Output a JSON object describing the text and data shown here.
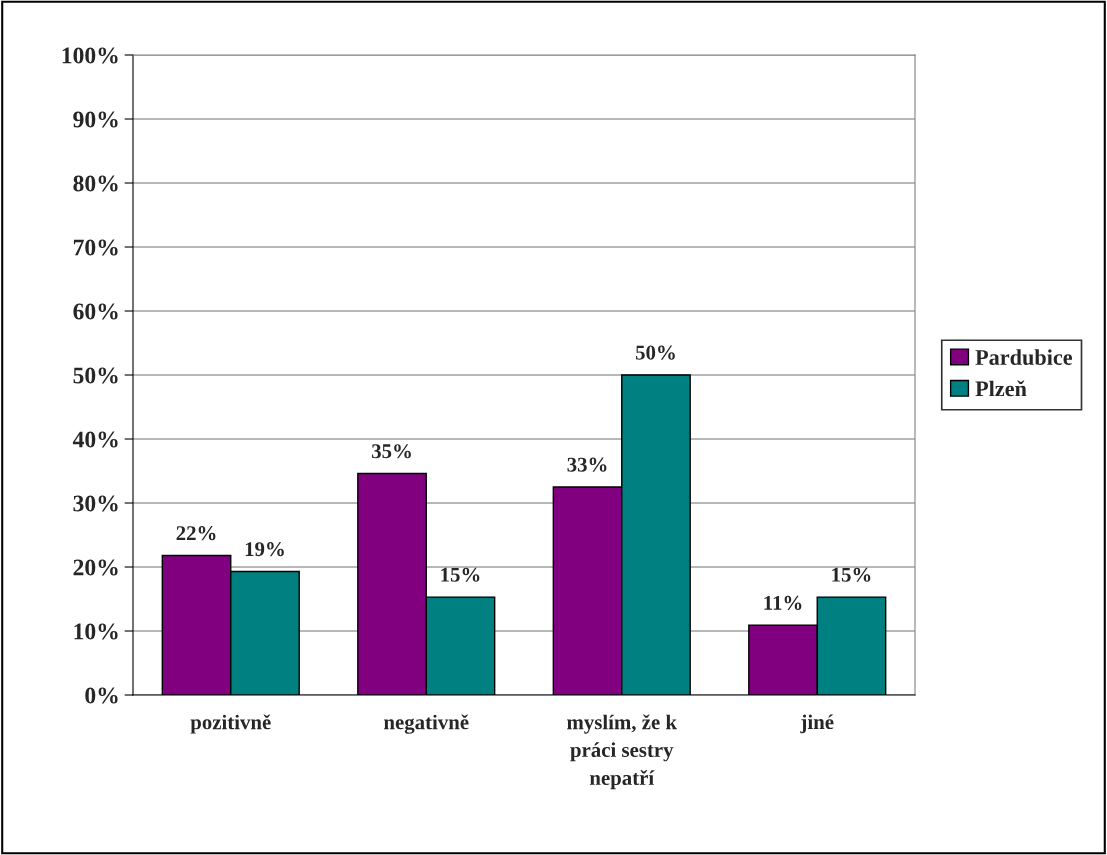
{
  "chart_data": {
    "type": "bar",
    "categories": [
      "pozitivně",
      "negativně",
      "myslím, že k\npráci sestry\nnepatří",
      "jiné"
    ],
    "series": [
      {
        "name": "Pardubice",
        "color": "#800080",
        "values": [
          21.8,
          34.6,
          32.5,
          10.9
        ],
        "value_labels": [
          "22%",
          "35%",
          "33%",
          "11%"
        ]
      },
      {
        "name": "Plzeň",
        "color": "#008080",
        "values": [
          19.3,
          15.3,
          50,
          15.3
        ],
        "value_labels": [
          "19%",
          "15%",
          "50%",
          "15%"
        ]
      }
    ],
    "ylim": [
      0,
      100
    ],
    "yticks": [
      {
        "value": 0,
        "label": "0%"
      },
      {
        "value": 10,
        "label": "10%"
      },
      {
        "value": 20,
        "label": "20%"
      },
      {
        "value": 30,
        "label": "30%"
      },
      {
        "value": 40,
        "label": "40%"
      },
      {
        "value": 50,
        "label": "50%"
      },
      {
        "value": 60,
        "label": "60%"
      },
      {
        "value": 70,
        "label": "70%"
      },
      {
        "value": 80,
        "label": "80%"
      },
      {
        "value": 90,
        "label": "90%"
      },
      {
        "value": 100,
        "label": "100%"
      }
    ],
    "grid": "y",
    "legend": "right"
  }
}
